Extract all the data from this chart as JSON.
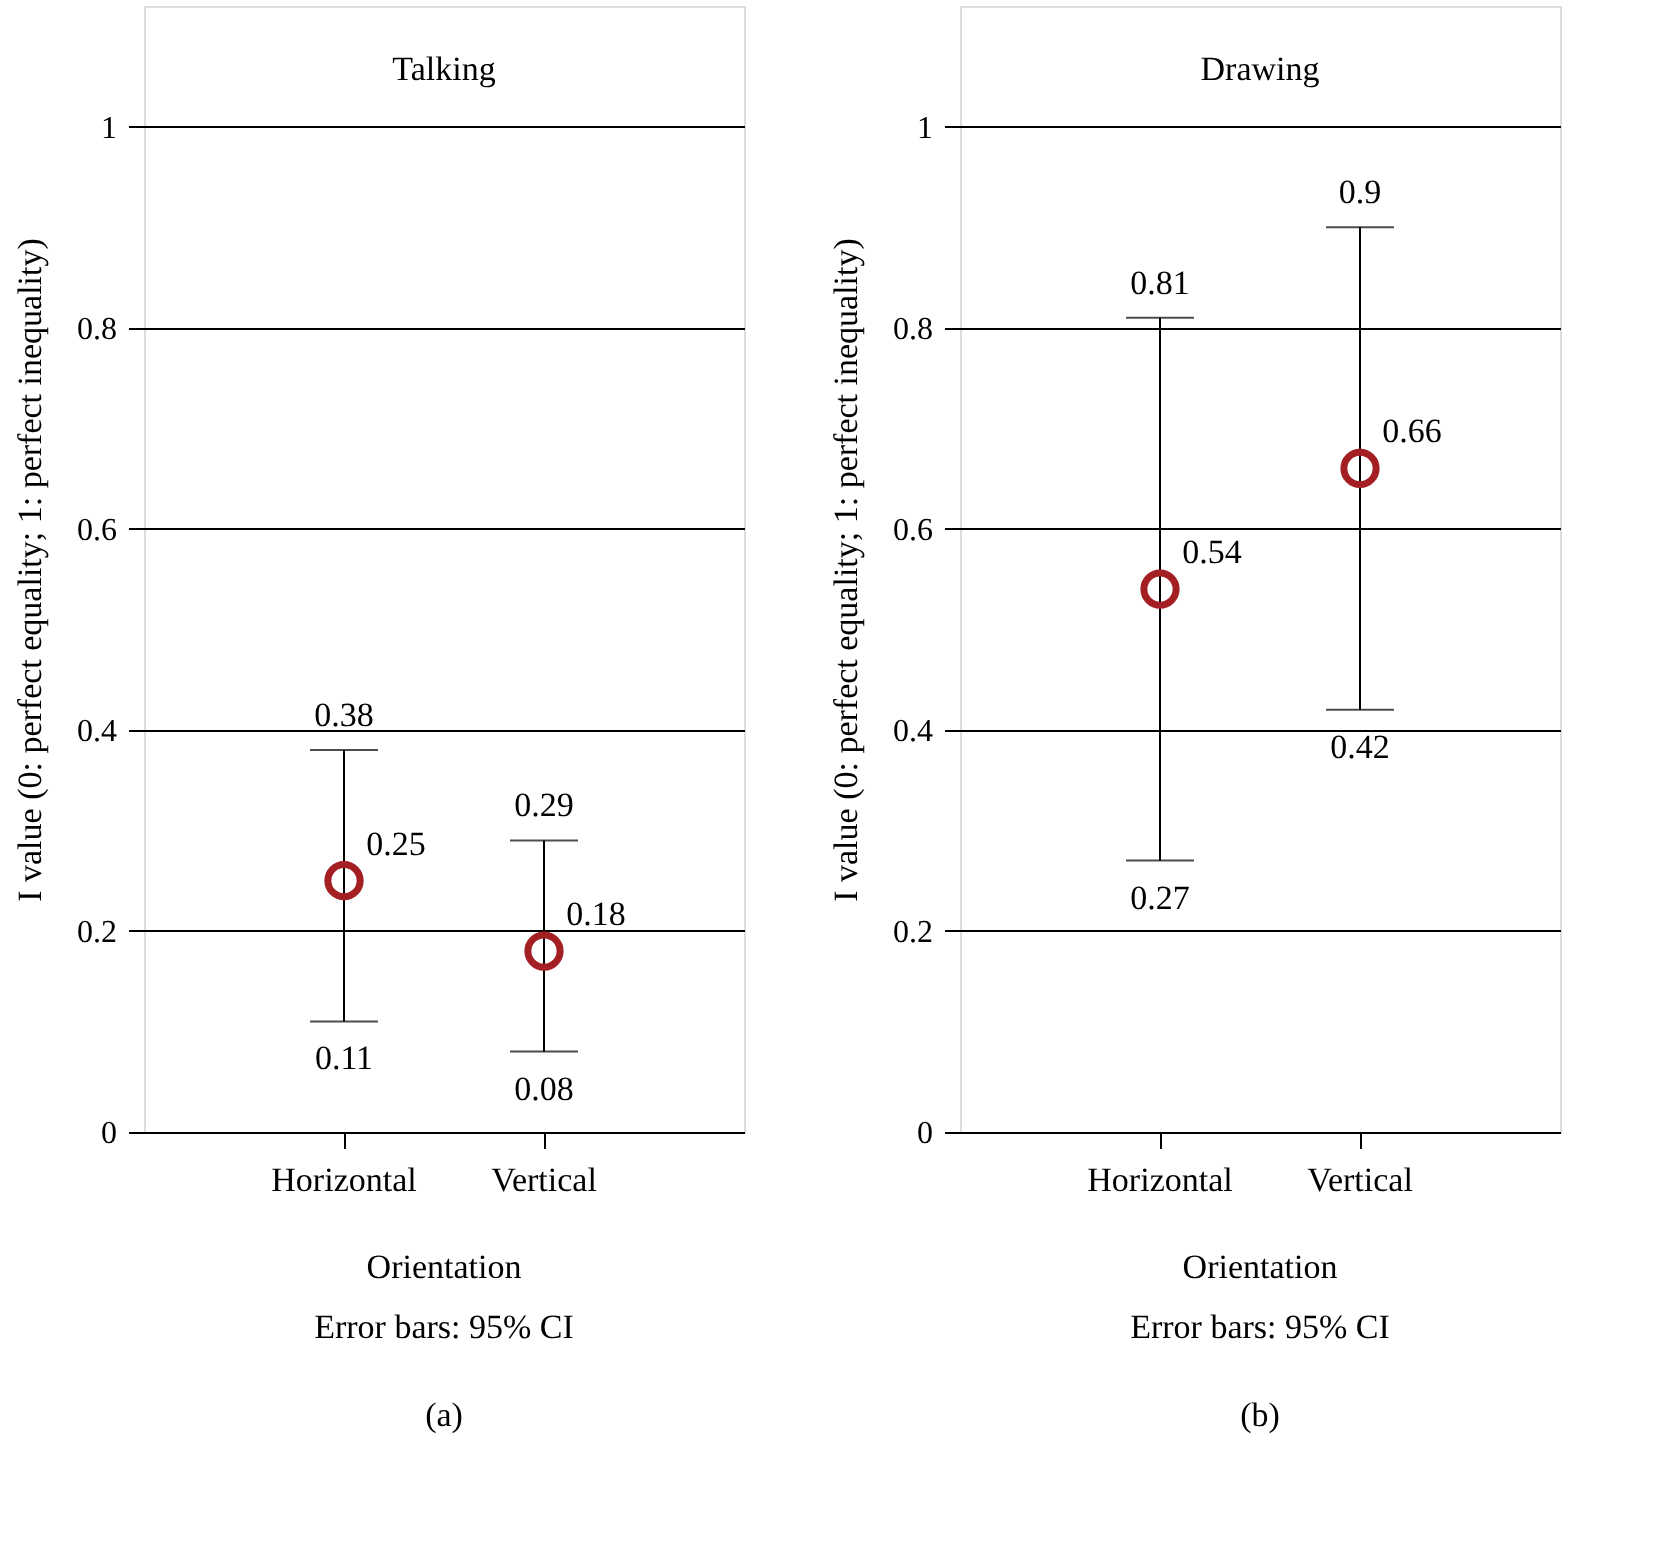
{
  "chart_data": [
    {
      "type": "scatter",
      "title": "Talking",
      "categories": [
        "Horizontal",
        "Vertical"
      ],
      "series": [
        {
          "color": "#a31f24",
          "values": [
            0.25,
            0.18
          ],
          "errors": [
            [
              0.11,
              0.38
            ],
            [
              0.08,
              0.29
            ]
          ]
        }
      ],
      "ylim": [
        0,
        1.12
      ],
      "yticks": [
        0,
        0.2,
        0.4,
        0.6,
        0.8,
        1
      ],
      "grid": "y",
      "marker": "circle",
      "data_labels": true,
      "xlabel": "Orientation",
      "ylabel": "I value (0: perfect equality; 1: perfect inequality)",
      "annotations": [
        {
          "text": "0.38",
          "x": "Horizontal",
          "y": 0.38
        },
        {
          "text": "0.11",
          "x": "Horizontal",
          "y": 0.11
        },
        {
          "text": "0.29",
          "x": "Vertical",
          "y": 0.29
        },
        {
          "text": "0.08",
          "x": "Vertical",
          "y": 0.08
        },
        "Error bars: 95% CI",
        "(a)"
      ]
    },
    {
      "type": "scatter",
      "title": "Drawing",
      "categories": [
        "Horizontal",
        "Vertical"
      ],
      "series": [
        {
          "color": "#a31f24",
          "values": [
            0.54,
            0.66
          ],
          "errors": [
            [
              0.27,
              0.81
            ],
            [
              0.42,
              0.9
            ]
          ]
        }
      ],
      "ylim": [
        0,
        1.12
      ],
      "yticks": [
        0,
        0.2,
        0.4,
        0.6,
        0.8,
        1
      ],
      "grid": "y",
      "marker": "circle",
      "data_labels": true,
      "xlabel": "Orientation",
      "ylabel": "I value (0: perfect equality; 1: perfect inequality)",
      "annotations": [
        {
          "text": "0.81",
          "x": "Horizontal",
          "y": 0.81
        },
        {
          "text": "0.27",
          "x": "Horizontal",
          "y": 0.27
        },
        {
          "text": "0.9",
          "x": "Vertical",
          "y": 0.9
        },
        {
          "text": "0.42",
          "x": "Vertical",
          "y": 0.42
        },
        "Error bars: 95% CI",
        "(b)"
      ]
    }
  ]
}
